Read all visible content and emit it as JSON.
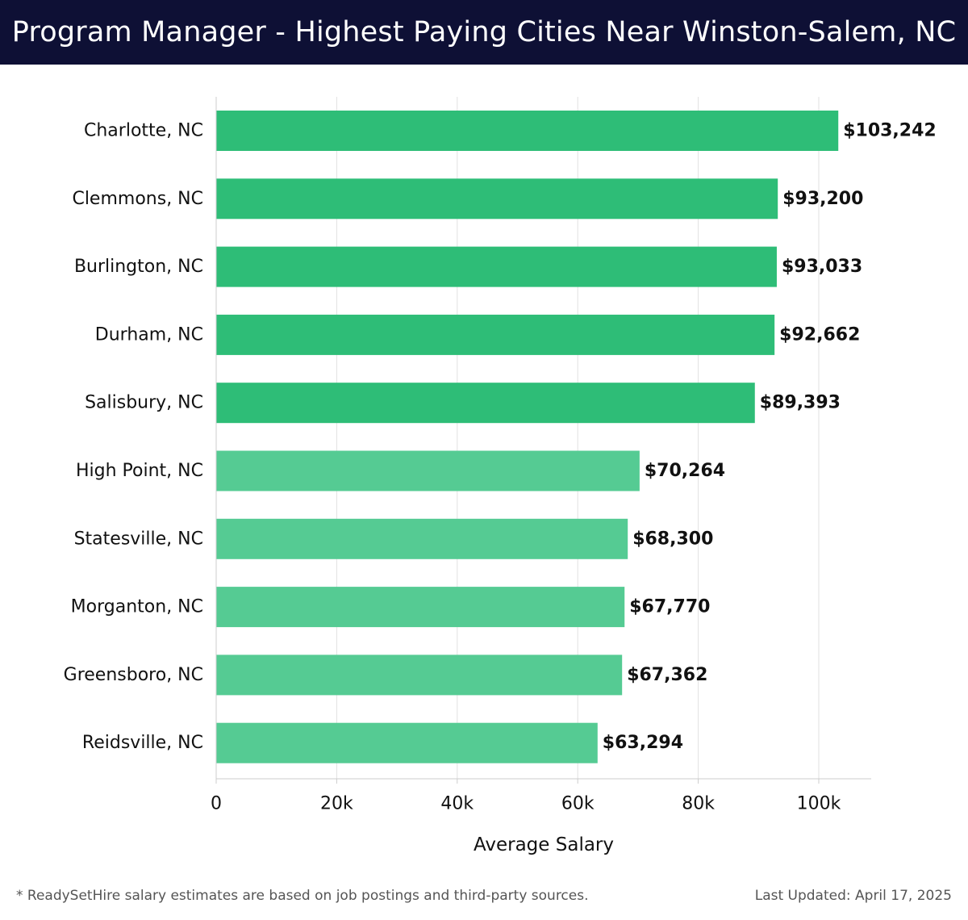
{
  "header": {
    "title": "Program Manager - Highest Paying Cities Near Winston-Salem, NC"
  },
  "chart_data": {
    "type": "bar",
    "orientation": "horizontal",
    "title": "Program Manager - Highest Paying Cities Near Winston-Salem, NC",
    "xlabel": "Average Salary",
    "ylabel": "",
    "xlim": [
      0,
      108500
    ],
    "x_ticks": [
      0,
      20000,
      40000,
      60000,
      80000,
      100000
    ],
    "x_tick_labels": [
      "0",
      "20k",
      "40k",
      "60k",
      "80k",
      "100k"
    ],
    "grid": "vertical",
    "categories": [
      "Charlotte, NC",
      "Clemmons, NC",
      "Burlington, NC",
      "Durham, NC",
      "Salisbury, NC",
      "High Point, NC",
      "Statesville, NC",
      "Morganton, NC",
      "Greensboro, NC",
      "Reidsville, NC"
    ],
    "values": [
      103242,
      93200,
      93033,
      92662,
      89393,
      70264,
      68300,
      67770,
      67362,
      63294
    ],
    "value_labels": [
      "$103,242",
      "$93,200",
      "$93,033",
      "$92,662",
      "$89,393",
      "$70,264",
      "$68,300",
      "$67,770",
      "$67,362",
      "$63,294"
    ],
    "colors": {
      "top_bars": "#2ebd77",
      "other_bars": "#55cb93",
      "grid": "#e2e2e2",
      "axis": "#cccccc"
    },
    "highlight_count": 5
  },
  "footer": {
    "note": "* ReadySetHire salary estimates are based on job postings and third-party sources.",
    "updated": "Last Updated: April 17, 2025"
  }
}
